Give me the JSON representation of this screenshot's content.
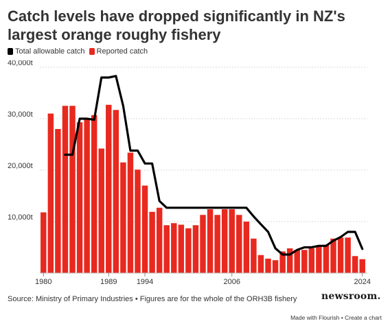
{
  "title": "Catch levels have dropped significantly in NZ's largest orange roughy fishery",
  "legend": [
    {
      "label": "Total allowable catch",
      "color": "#000000"
    },
    {
      "label": "Reported catch",
      "color": "#e8291f"
    }
  ],
  "source": "Source: Ministry of Primary Industries • Figures are for the whole of the ORH3B fishery",
  "logo": "newsroom.",
  "footer": {
    "made_with": "Made with Flourish",
    "separator": " • ",
    "create": "Create a chart"
  },
  "chart_data": {
    "type": "bar",
    "x": [
      1980,
      1981,
      1982,
      1983,
      1984,
      1985,
      1986,
      1987,
      1988,
      1989,
      1990,
      1991,
      1992,
      1993,
      1994,
      1995,
      1996,
      1997,
      1998,
      1999,
      2000,
      2001,
      2002,
      2003,
      2004,
      2005,
      2006,
      2007,
      2008,
      2009,
      2010,
      2011,
      2012,
      2013,
      2014,
      2015,
      2016,
      2017,
      2018,
      2019,
      2020,
      2021,
      2022,
      2023,
      2024
    ],
    "series": [
      {
        "name": "Reported catch",
        "color": "#e8291f",
        "type": "bar",
        "values": [
          11800,
          31000,
          28000,
          32500,
          32500,
          29300,
          29800,
          30700,
          24200,
          32700,
          31700,
          21500,
          23400,
          20100,
          17000,
          11900,
          12700,
          9300,
          9700,
          9400,
          8700,
          9300,
          11300,
          12400,
          11300,
          12400,
          12400,
          11300,
          10000,
          6700,
          3500,
          2800,
          2500,
          4200,
          4800,
          4500,
          4500,
          4800,
          5300,
          5500,
          6700,
          6900,
          6900,
          3300,
          2700
        ],
        "labels": [
          "",
          "",
          "",
          "",
          "",
          "",
          "",
          "",
          "",
          "",
          "",
          "",
          "",
          "",
          "",
          "",
          "",
          "",
          "",
          "",
          "",
          "",
          "",
          "",
          "",
          "",
          "",
          "",
          "",
          "",
          "",
          "",
          "",
          "",
          "",
          "",
          "",
          "",
          "",
          "",
          "",
          "",
          "",
          "",
          ""
        ]
      },
      {
        "name": "Total allowable catch",
        "color": "#000000",
        "type": "line",
        "values": [
          null,
          null,
          null,
          23000,
          23000,
          30000,
          30000,
          29800,
          38000,
          38000,
          38300,
          32500,
          23800,
          23800,
          21300,
          21300,
          14000,
          12700,
          12700,
          12700,
          12700,
          12700,
          12700,
          12700,
          12700,
          12700,
          12700,
          12700,
          12700,
          11000,
          9500,
          8000,
          4800,
          3600,
          3600,
          4500,
          5000,
          5000,
          5300,
          5300,
          6300,
          7000,
          8000,
          8000,
          4700
        ]
      }
    ],
    "ylim": [
      0,
      40000
    ],
    "yticks": [
      {
        "value": 10000,
        "label": "10,000t"
      },
      {
        "value": 20000,
        "label": "20,000t"
      },
      {
        "value": 30000,
        "label": "30,000t"
      },
      {
        "value": 40000,
        "label": "40,000t"
      }
    ],
    "xticks": [
      {
        "value": 1980,
        "label": "1980"
      },
      {
        "value": 1989,
        "label": "1989"
      },
      {
        "value": 1994,
        "label": "1994"
      },
      {
        "value": 2006,
        "label": "2006"
      },
      {
        "value": 2024,
        "label": "2024"
      }
    ],
    "xlabel": "",
    "ylabel": "",
    "grid": true,
    "legend_position": "top-left"
  }
}
